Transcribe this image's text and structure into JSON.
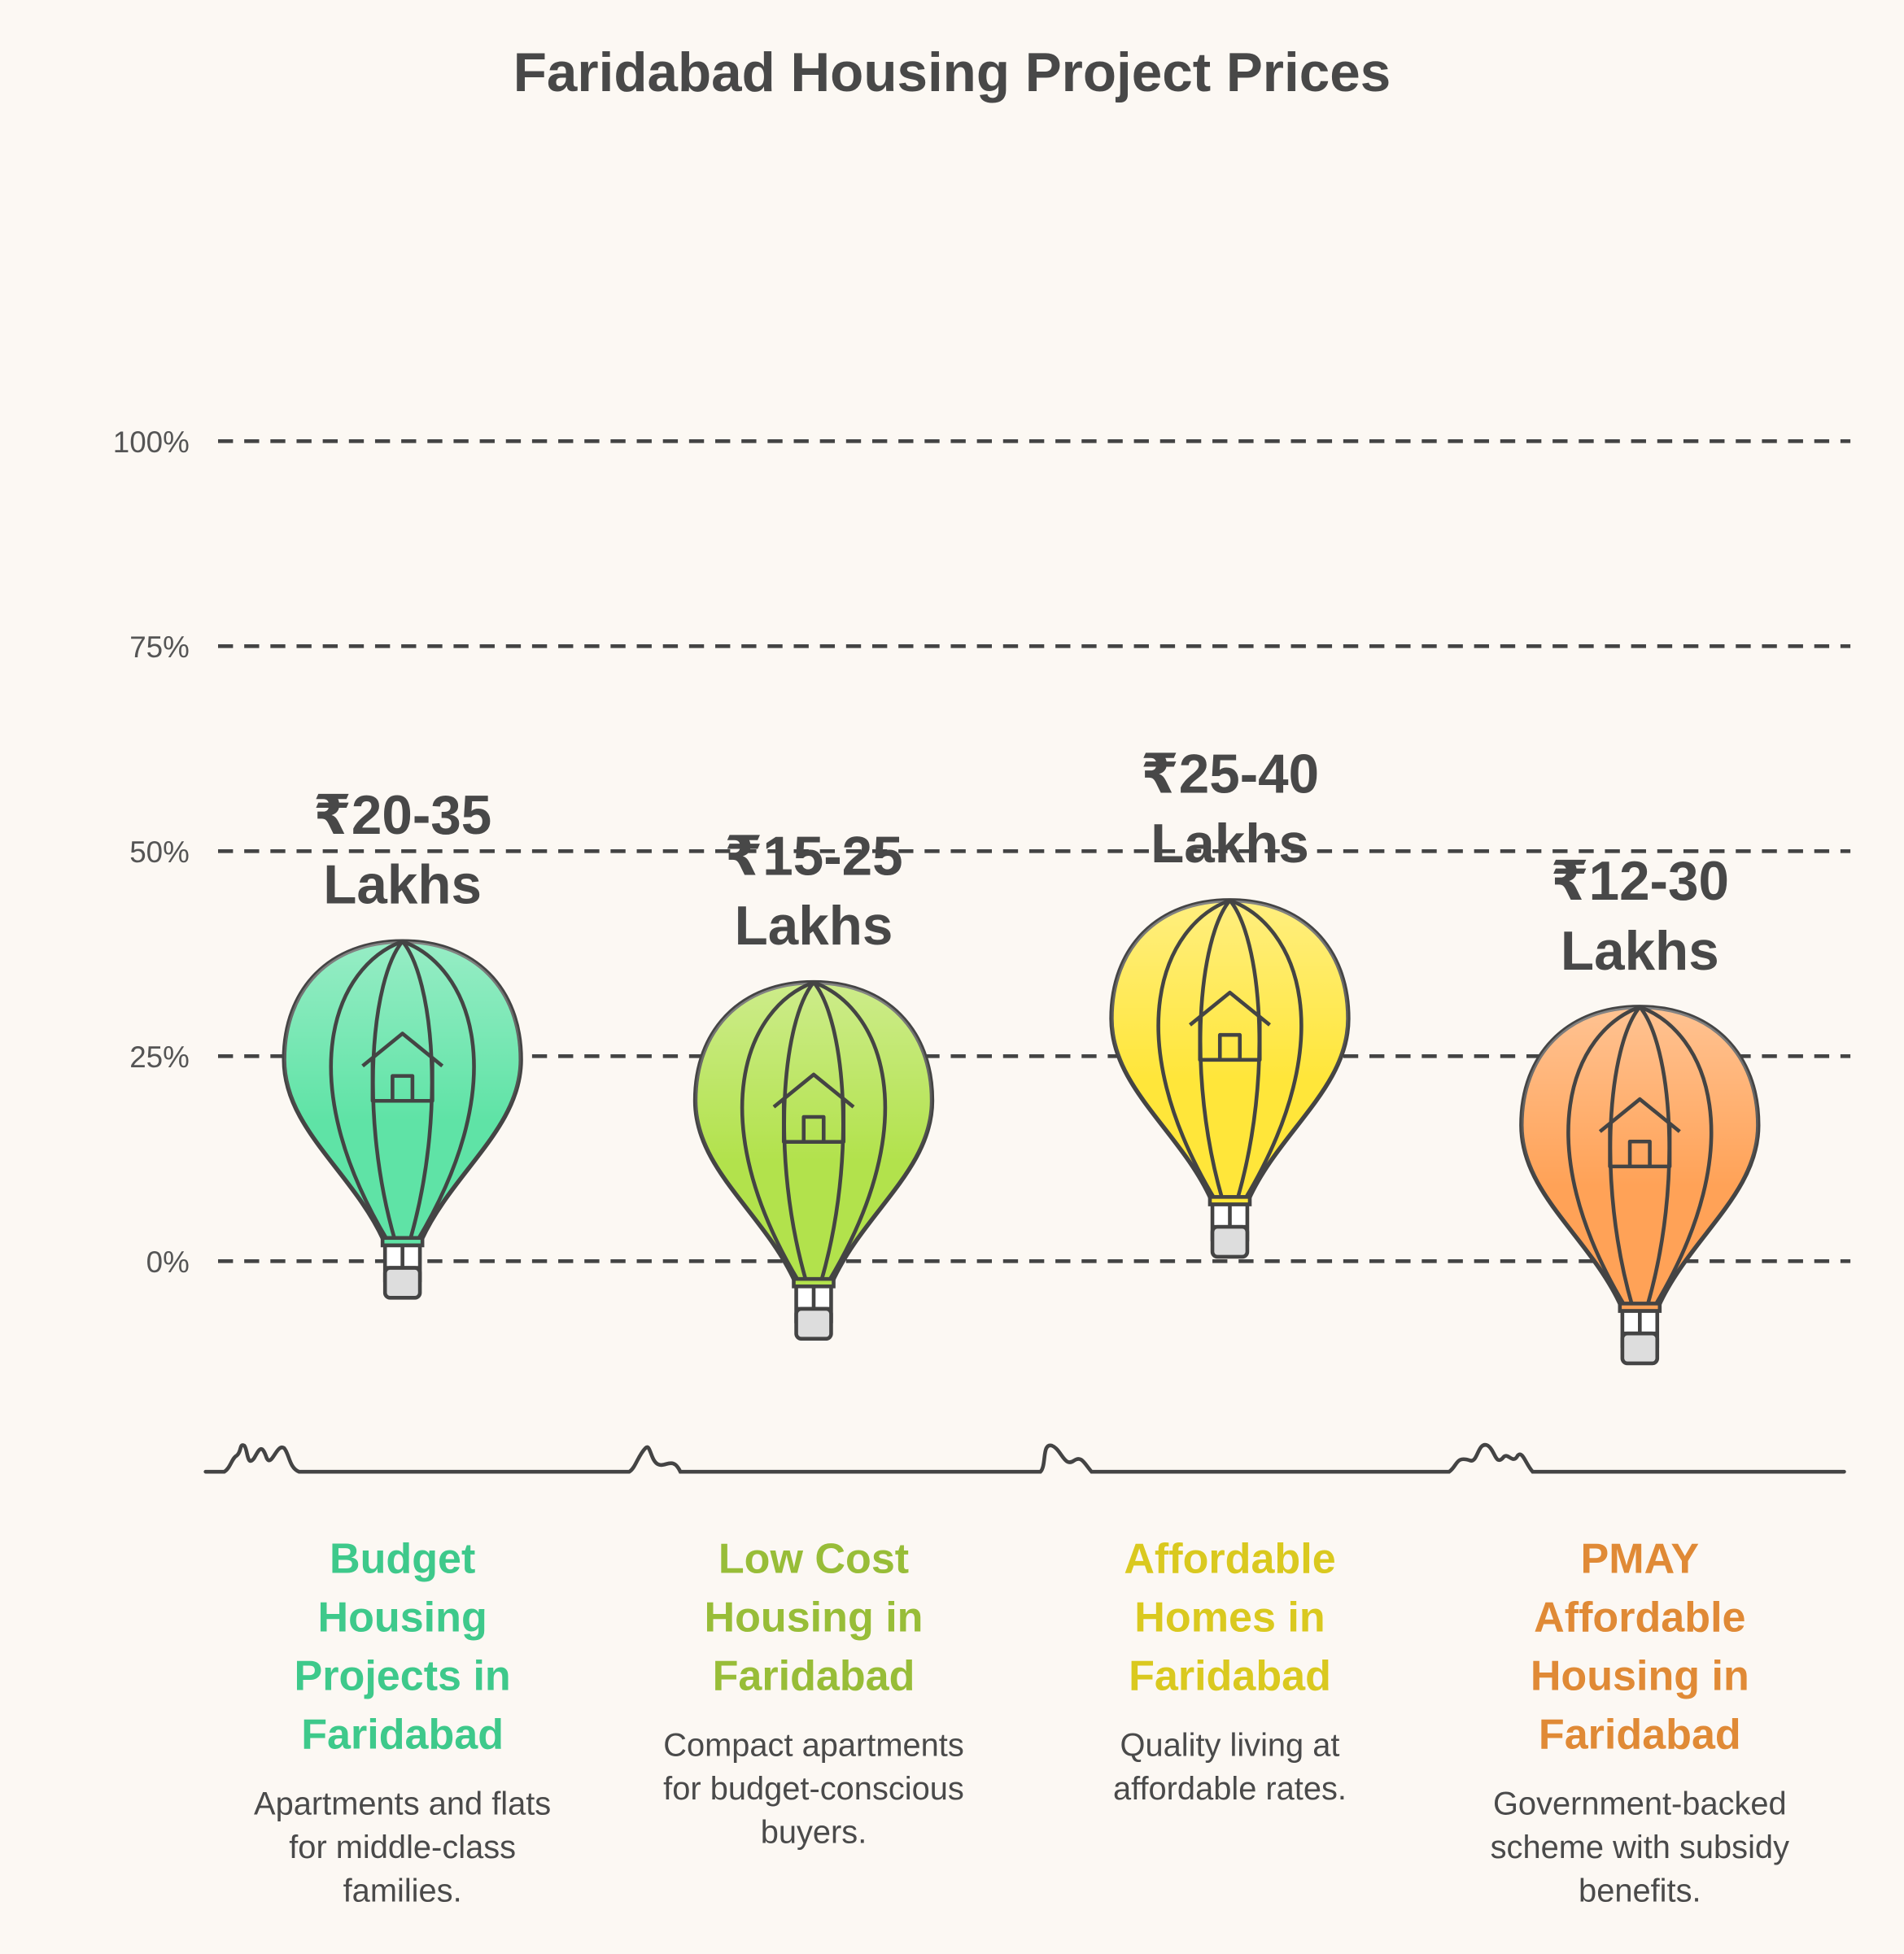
{
  "chart_data": {
    "type": "balloon",
    "title": "Faridabad Housing Project Prices",
    "ylim": [
      0,
      100
    ],
    "yticks": [
      {
        "value": 0,
        "label": "0%"
      },
      {
        "value": 25,
        "label": "25%"
      },
      {
        "value": 50,
        "label": "50%"
      },
      {
        "value": 75,
        "label": "75%"
      },
      {
        "value": 100,
        "label": "100%"
      }
    ],
    "grid": true,
    "categories": [
      "Budget Housing Projects in Faridabad",
      "Low Cost Housing in Faridabad",
      "Affordable Homes in Faridabad",
      "PMAY Affordable Housing in Faridabad"
    ],
    "values": [
      39,
      34,
      44,
      31
    ],
    "price_labels": [
      "₹20-35 Lakhs",
      "₹15-25 Lakhs",
      "₹25-40 Lakhs",
      "₹12-30 Lakhs"
    ],
    "descriptions": [
      "Apartments and flats for middle-class families.",
      "Compact apartments for budget-conscious buyers.",
      "Quality living at affordable rates.",
      "Government-backed scheme with subsidy benefits."
    ],
    "colors": [
      "#5fe3a6",
      "#b2e24c",
      "#ffe63a",
      "#ffa257"
    ],
    "text_colors": [
      "#3ec98b",
      "#98bd38",
      "#dac91f",
      "#e08a36"
    ]
  }
}
